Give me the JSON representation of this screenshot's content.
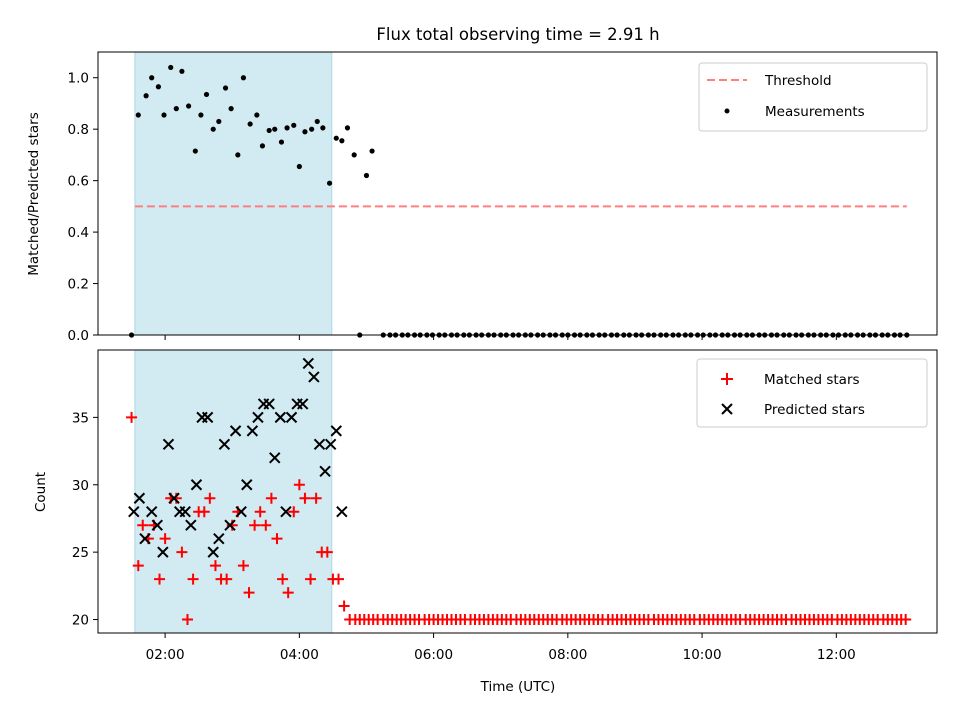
{
  "colors": {
    "threshold": "#ff7f7f",
    "measurement": "#000000",
    "matched": "#ff0000",
    "predicted": "#000000",
    "shade": "#add8e6"
  },
  "chart_data": [
    {
      "type": "scatter",
      "title": "Flux total observing time = 2.91 h",
      "xlabel": "",
      "ylabel": "Matched/Predicted stars",
      "xlim": [
        "01:00",
        "13:30"
      ],
      "ylim": [
        0,
        1.1
      ],
      "y_ticks": [
        "0.0",
        "0.2",
        "0.4",
        "0.6",
        "0.8",
        "1.0"
      ],
      "grid": false,
      "legend_position": "top-right",
      "shaded_region": {
        "x_start": "01:33",
        "x_end": "04:29"
      },
      "threshold": {
        "name": "Threshold",
        "value": 0.5,
        "x_start": "01:33",
        "x_end": "13:03",
        "style": "dashed"
      },
      "series": [
        {
          "name": "Measurements",
          "points": [
            [
              "01:30",
              0.0
            ],
            [
              "01:36",
              0.855
            ],
            [
              "01:43",
              0.93
            ],
            [
              "01:48",
              1.0
            ],
            [
              "01:54",
              0.965
            ],
            [
              "01:59",
              0.855
            ],
            [
              "02:05",
              1.04
            ],
            [
              "02:10",
              0.88
            ],
            [
              "02:15",
              1.025
            ],
            [
              "02:21",
              0.89
            ],
            [
              "02:27",
              0.715
            ],
            [
              "02:32",
              0.855
            ],
            [
              "02:37",
              0.935
            ],
            [
              "02:43",
              0.8
            ],
            [
              "02:48",
              0.83
            ],
            [
              "02:54",
              0.96
            ],
            [
              "02:59",
              0.88
            ],
            [
              "03:05",
              0.7
            ],
            [
              "03:10",
              1.0
            ],
            [
              "03:16",
              0.82
            ],
            [
              "03:22",
              0.855
            ],
            [
              "03:27",
              0.735
            ],
            [
              "03:33",
              0.795
            ],
            [
              "03:38",
              0.8
            ],
            [
              "03:44",
              0.75
            ],
            [
              "03:49",
              0.805
            ],
            [
              "03:55",
              0.815
            ],
            [
              "04:00",
              0.655
            ],
            [
              "04:05",
              0.79
            ],
            [
              "04:11",
              0.8
            ],
            [
              "04:16",
              0.83
            ],
            [
              "04:21",
              0.805
            ],
            [
              "04:27",
              0.59
            ],
            [
              "04:33",
              0.765
            ],
            [
              "04:38",
              0.755
            ],
            [
              "04:43",
              0.805
            ],
            [
              "04:49",
              0.7
            ],
            [
              "04:54",
              0.0
            ],
            [
              "05:00",
              0.62
            ],
            [
              "05:05",
              0.715
            ]
          ],
          "flat_points": {
            "from": "05:15",
            "to": "13:05",
            "step_minutes": 5.5,
            "value": 0.0
          }
        }
      ]
    },
    {
      "type": "scatter",
      "title": "",
      "xlabel": "Time (UTC)",
      "ylabel": "Count",
      "xlim": [
        "01:00",
        "13:30"
      ],
      "ylim": [
        19,
        40
      ],
      "x_ticks": [
        "02:00",
        "04:00",
        "06:00",
        "08:00",
        "10:00",
        "12:00"
      ],
      "y_ticks": [
        "20",
        "25",
        "30",
        "35"
      ],
      "grid": false,
      "legend_position": "top-right",
      "shaded_region": {
        "x_start": "01:33",
        "x_end": "04:29"
      },
      "series": [
        {
          "name": "Matched stars",
          "marker": "plus",
          "points": [
            [
              "01:30",
              35
            ],
            [
              "01:36",
              24
            ],
            [
              "01:40",
              27
            ],
            [
              "01:45",
              26
            ],
            [
              "01:50",
              27
            ],
            [
              "01:55",
              23
            ],
            [
              "02:00",
              26
            ],
            [
              "02:05",
              29
            ],
            [
              "02:10",
              29
            ],
            [
              "02:15",
              25
            ],
            [
              "02:20",
              20
            ],
            [
              "02:25",
              23
            ],
            [
              "02:30",
              28
            ],
            [
              "02:35",
              28
            ],
            [
              "02:40",
              29
            ],
            [
              "02:45",
              24
            ],
            [
              "02:50",
              23
            ],
            [
              "02:55",
              23
            ],
            [
              "03:00",
              27
            ],
            [
              "03:05",
              28
            ],
            [
              "03:10",
              24
            ],
            [
              "03:15",
              22
            ],
            [
              "03:20",
              27
            ],
            [
              "03:25",
              28
            ],
            [
              "03:30",
              27
            ],
            [
              "03:35",
              29
            ],
            [
              "03:40",
              26
            ],
            [
              "03:45",
              23
            ],
            [
              "03:50",
              22
            ],
            [
              "03:55",
              28
            ],
            [
              "04:00",
              30
            ],
            [
              "04:05",
              29
            ],
            [
              "04:10",
              23
            ],
            [
              "04:15",
              29
            ],
            [
              "04:20",
              25
            ],
            [
              "04:25",
              25
            ],
            [
              "04:30",
              23
            ],
            [
              "04:35",
              23
            ],
            [
              "04:40",
              21
            ],
            [
              "04:45",
              20
            ]
          ],
          "flat_points": {
            "from": "04:50",
            "to": "13:05",
            "step_minutes": 4.1,
            "value": 20
          }
        },
        {
          "name": "Predicted stars",
          "marker": "cross",
          "points": [
            [
              "01:32",
              28
            ],
            [
              "01:37",
              29
            ],
            [
              "01:42",
              26
            ],
            [
              "01:48",
              28
            ],
            [
              "01:53",
              27
            ],
            [
              "01:58",
              25
            ],
            [
              "02:03",
              33
            ],
            [
              "02:08",
              29
            ],
            [
              "02:13",
              28
            ],
            [
              "02:18",
              28
            ],
            [
              "02:23",
              27
            ],
            [
              "02:28",
              30
            ],
            [
              "02:33",
              35
            ],
            [
              "02:38",
              35
            ],
            [
              "02:43",
              25
            ],
            [
              "02:48",
              26
            ],
            [
              "02:53",
              33
            ],
            [
              "02:58",
              27
            ],
            [
              "03:03",
              34
            ],
            [
              "03:08",
              28
            ],
            [
              "03:13",
              30
            ],
            [
              "03:18",
              34
            ],
            [
              "03:23",
              35
            ],
            [
              "03:28",
              36
            ],
            [
              "03:33",
              36
            ],
            [
              "03:38",
              32
            ],
            [
              "03:43",
              35
            ],
            [
              "03:48",
              28
            ],
            [
              "03:53",
              35
            ],
            [
              "03:58",
              36
            ],
            [
              "04:03",
              36
            ],
            [
              "04:08",
              39
            ],
            [
              "04:13",
              38
            ],
            [
              "04:18",
              33
            ],
            [
              "04:23",
              31
            ],
            [
              "04:28",
              33
            ],
            [
              "04:33",
              34
            ],
            [
              "04:38",
              28
            ]
          ]
        }
      ]
    }
  ]
}
